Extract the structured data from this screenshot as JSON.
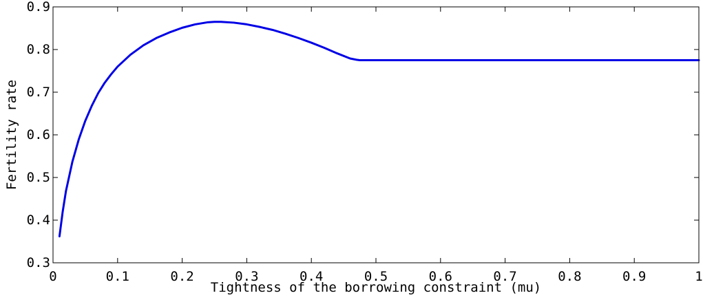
{
  "chart_data": {
    "type": "line",
    "title": "",
    "xlabel": "Tightness of the borrowing constraint (mu)",
    "ylabel": "Fertility rate",
    "xlim": [
      0,
      1
    ],
    "ylim": [
      0.3,
      0.9
    ],
    "x_ticks": [
      0,
      0.1,
      0.2,
      0.3,
      0.4,
      0.5,
      0.6,
      0.7,
      0.8,
      0.9,
      1
    ],
    "x_tick_labels": [
      "0",
      "0.1",
      "0.2",
      "0.3",
      "0.4",
      "0.5",
      "0.6",
      "0.7",
      "0.8",
      "0.9",
      "1"
    ],
    "y_ticks": [
      0.3,
      0.4,
      0.5,
      0.6,
      0.7,
      0.8,
      0.9
    ],
    "y_tick_labels": [
      "0.3",
      "0.4",
      "0.5",
      "0.6",
      "0.7",
      "0.8",
      "0.9"
    ],
    "grid": false,
    "legend": "none",
    "series": [
      {
        "color": "#0000e6",
        "x": [
          0.01,
          0.015,
          0.02,
          0.03,
          0.04,
          0.05,
          0.06,
          0.07,
          0.08,
          0.09,
          0.1,
          0.12,
          0.14,
          0.16,
          0.18,
          0.2,
          0.22,
          0.24,
          0.25,
          0.26,
          0.28,
          0.3,
          0.32,
          0.34,
          0.36,
          0.38,
          0.4,
          0.42,
          0.44,
          0.46,
          0.47,
          0.475,
          0.48,
          0.5,
          0.6,
          0.7,
          0.8,
          0.9,
          1.0
        ],
        "y": [
          0.362,
          0.42,
          0.468,
          0.537,
          0.59,
          0.633,
          0.668,
          0.698,
          0.722,
          0.742,
          0.76,
          0.788,
          0.81,
          0.827,
          0.84,
          0.851,
          0.859,
          0.864,
          0.865,
          0.865,
          0.863,
          0.859,
          0.853,
          0.846,
          0.837,
          0.827,
          0.816,
          0.804,
          0.791,
          0.779,
          0.776,
          0.775,
          0.775,
          0.775,
          0.775,
          0.775,
          0.775,
          0.775,
          0.775
        ]
      }
    ]
  }
}
